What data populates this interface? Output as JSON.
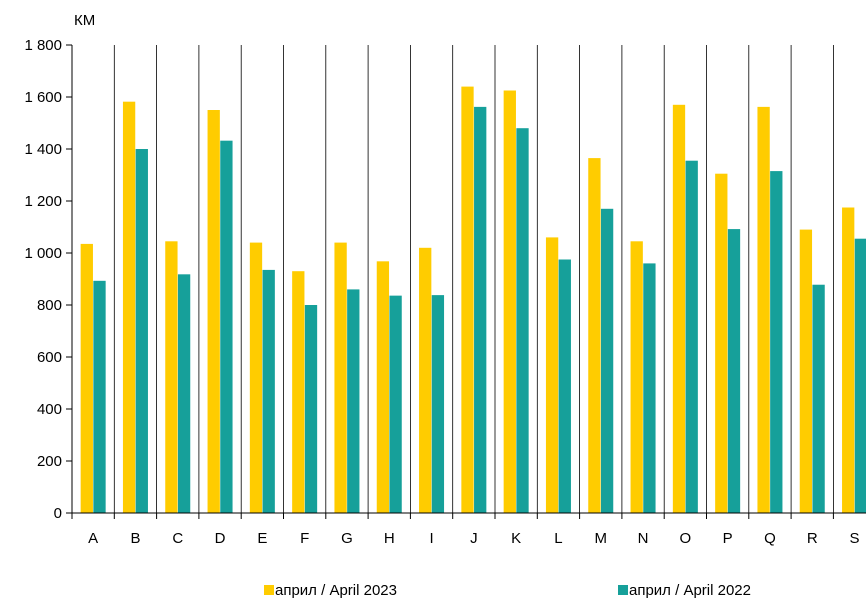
{
  "chart_data": {
    "type": "bar",
    "ylabel": "КМ",
    "categories": [
      "A",
      "B",
      "C",
      "D",
      "E",
      "F",
      "G",
      "H",
      "I",
      "J",
      "K",
      "L",
      "M",
      "N",
      "O",
      "P",
      "Q",
      "R",
      "S"
    ],
    "series": [
      {
        "name": "април / April 2023",
        "color": "#ffcc00",
        "values": [
          1035,
          1582,
          1045,
          1550,
          1040,
          930,
          1040,
          968,
          1020,
          1640,
          1625,
          1060,
          1365,
          1045,
          1570,
          1305,
          1562,
          1090,
          1175
        ]
      },
      {
        "name": "април / April 2022",
        "color": "#16a09a",
        "values": [
          893,
          1400,
          918,
          1432,
          935,
          800,
          860,
          836,
          838,
          1562,
          1480,
          975,
          1170,
          960,
          1355,
          1092,
          1315,
          878,
          1055
        ]
      }
    ],
    "ylim": [
      0,
      1800
    ],
    "yticks": [
      0,
      200,
      400,
      600,
      800,
      1000,
      1200,
      1400,
      1600,
      1800
    ],
    "ytick_labels": [
      "0",
      "200",
      "400",
      "600",
      "800",
      "1 000",
      "1 200",
      "1 400",
      "1 600",
      "1 800"
    ],
    "grid": true,
    "legend_position": "bottom"
  }
}
